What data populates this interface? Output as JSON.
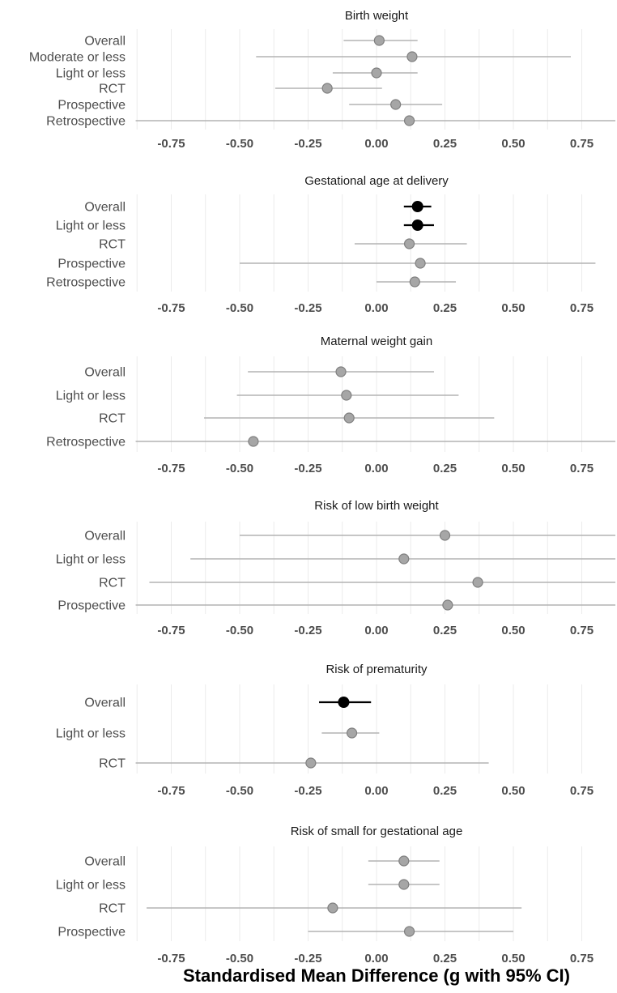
{
  "chart_data": [
    {
      "type": "forest",
      "title": "Birth weight",
      "xticks": [
        -0.75,
        -0.5,
        -0.25,
        0.0,
        0.25,
        0.5,
        0.75
      ],
      "xtick_labels": [
        "-0.75",
        "-0.50",
        "-0.25",
        "0.00",
        "0.25",
        "0.50",
        "0.75"
      ],
      "rows": [
        {
          "label": "Overall",
          "est": 0.01,
          "lo": -0.12,
          "hi": 0.15,
          "significant": false
        },
        {
          "label": "Moderate or less",
          "est": 0.13,
          "lo": -0.44,
          "hi": 0.71,
          "significant": false
        },
        {
          "label": "Light or less",
          "est": 0.0,
          "lo": -0.16,
          "hi": 0.15,
          "significant": false
        },
        {
          "label": "RCT",
          "est": -0.18,
          "lo": -0.37,
          "hi": 0.02,
          "significant": false
        },
        {
          "label": "Prospective",
          "est": 0.07,
          "lo": -0.1,
          "hi": 0.24,
          "significant": false
        },
        {
          "label": "Retrospective",
          "est": 0.12,
          "lo": -0.88,
          "hi": 0.88,
          "significant": false
        }
      ]
    },
    {
      "type": "forest",
      "title": "Gestational age at delivery",
      "xticks": [
        -0.75,
        -0.5,
        -0.25,
        0.0,
        0.25,
        0.5,
        0.75
      ],
      "xtick_labels": [
        "-0.75",
        "-0.50",
        "-0.25",
        "0.00",
        "0.25",
        "0.50",
        "0.75"
      ],
      "rows": [
        {
          "label": "Overall",
          "est": 0.15,
          "lo": 0.1,
          "hi": 0.2,
          "significant": true
        },
        {
          "label": "Light or less",
          "est": 0.15,
          "lo": 0.1,
          "hi": 0.21,
          "significant": true
        },
        {
          "label": "RCT",
          "est": 0.12,
          "lo": -0.08,
          "hi": 0.33,
          "significant": false
        },
        {
          "label": "Prospective",
          "est": 0.16,
          "lo": -0.5,
          "hi": 0.8,
          "significant": false
        },
        {
          "label": "Retrospective",
          "est": 0.14,
          "lo": 0.0,
          "hi": 0.29,
          "significant": false
        }
      ]
    },
    {
      "type": "forest",
      "title": "Maternal weight gain",
      "xticks": [
        -0.75,
        -0.5,
        -0.25,
        0.0,
        0.25,
        0.5,
        0.75
      ],
      "xtick_labels": [
        "-0.75",
        "-0.50",
        "-0.25",
        "0.00",
        "0.25",
        "0.50",
        "0.75"
      ],
      "rows": [
        {
          "label": "Overall",
          "est": -0.13,
          "lo": -0.47,
          "hi": 0.21,
          "significant": false
        },
        {
          "label": "Light or less",
          "est": -0.11,
          "lo": -0.51,
          "hi": 0.3,
          "significant": false
        },
        {
          "label": "RCT",
          "est": -0.1,
          "lo": -0.63,
          "hi": 0.43,
          "significant": false
        },
        {
          "label": "Retrospective",
          "est": -0.45,
          "lo": -0.88,
          "hi": 0.88,
          "significant": false
        }
      ]
    },
    {
      "type": "forest",
      "title": "Risk of low birth weight",
      "xticks": [
        -0.75,
        -0.5,
        -0.25,
        0.0,
        0.25,
        0.5,
        0.75
      ],
      "xtick_labels": [
        "-0.75",
        "-0.50",
        "-0.25",
        "0.00",
        "0.25",
        "0.50",
        "0.75"
      ],
      "rows": [
        {
          "label": "Overall",
          "est": 0.25,
          "lo": -0.5,
          "hi": 0.88,
          "significant": false
        },
        {
          "label": "Light or less",
          "est": 0.1,
          "lo": -0.68,
          "hi": 0.88,
          "significant": false
        },
        {
          "label": "RCT",
          "est": 0.37,
          "lo": -0.83,
          "hi": 0.88,
          "significant": false
        },
        {
          "label": "Prospective",
          "est": 0.26,
          "lo": -0.88,
          "hi": 0.88,
          "significant": false
        }
      ]
    },
    {
      "type": "forest",
      "title": "Risk of prematurity",
      "xticks": [
        -0.75,
        -0.5,
        -0.25,
        0.0,
        0.25,
        0.5,
        0.75
      ],
      "xtick_labels": [
        "-0.75",
        "-0.50",
        "-0.25",
        "0.00",
        "0.25",
        "0.50",
        "0.75"
      ],
      "rows": [
        {
          "label": "Overall",
          "est": -0.12,
          "lo": -0.21,
          "hi": -0.02,
          "significant": true
        },
        {
          "label": "Light or less",
          "est": -0.09,
          "lo": -0.2,
          "hi": 0.01,
          "significant": false
        },
        {
          "label": "RCT",
          "est": -0.24,
          "lo": -0.88,
          "hi": 0.41,
          "significant": false
        }
      ]
    },
    {
      "type": "forest",
      "title": "Risk of small for gestational age",
      "xticks": [
        -0.75,
        -0.5,
        -0.25,
        0.0,
        0.25,
        0.5,
        0.75
      ],
      "xtick_labels": [
        "-0.75",
        "-0.50",
        "-0.25",
        "0.00",
        "0.25",
        "0.50",
        "0.75"
      ],
      "rows": [
        {
          "label": "Overall",
          "est": 0.1,
          "lo": -0.03,
          "hi": 0.23,
          "significant": false
        },
        {
          "label": "Light or less",
          "est": 0.1,
          "lo": -0.03,
          "hi": 0.23,
          "significant": false
        },
        {
          "label": "RCT",
          "est": -0.16,
          "lo": -0.84,
          "hi": 0.53,
          "significant": false
        },
        {
          "label": "Prospective",
          "est": 0.12,
          "lo": -0.25,
          "hi": 0.5,
          "significant": false
        }
      ]
    }
  ],
  "xlabel": "Standardised Mean Difference (g with 95% CI)",
  "xlim": [
    -0.88,
    0.88
  ],
  "colors": {
    "significant": "#000000",
    "nonsignificant_point": "#a6a6a6",
    "nonsignificant_point_border": "#7f7f7f",
    "ci_line": "#b3b3b3",
    "grid": "#ebebeb"
  }
}
